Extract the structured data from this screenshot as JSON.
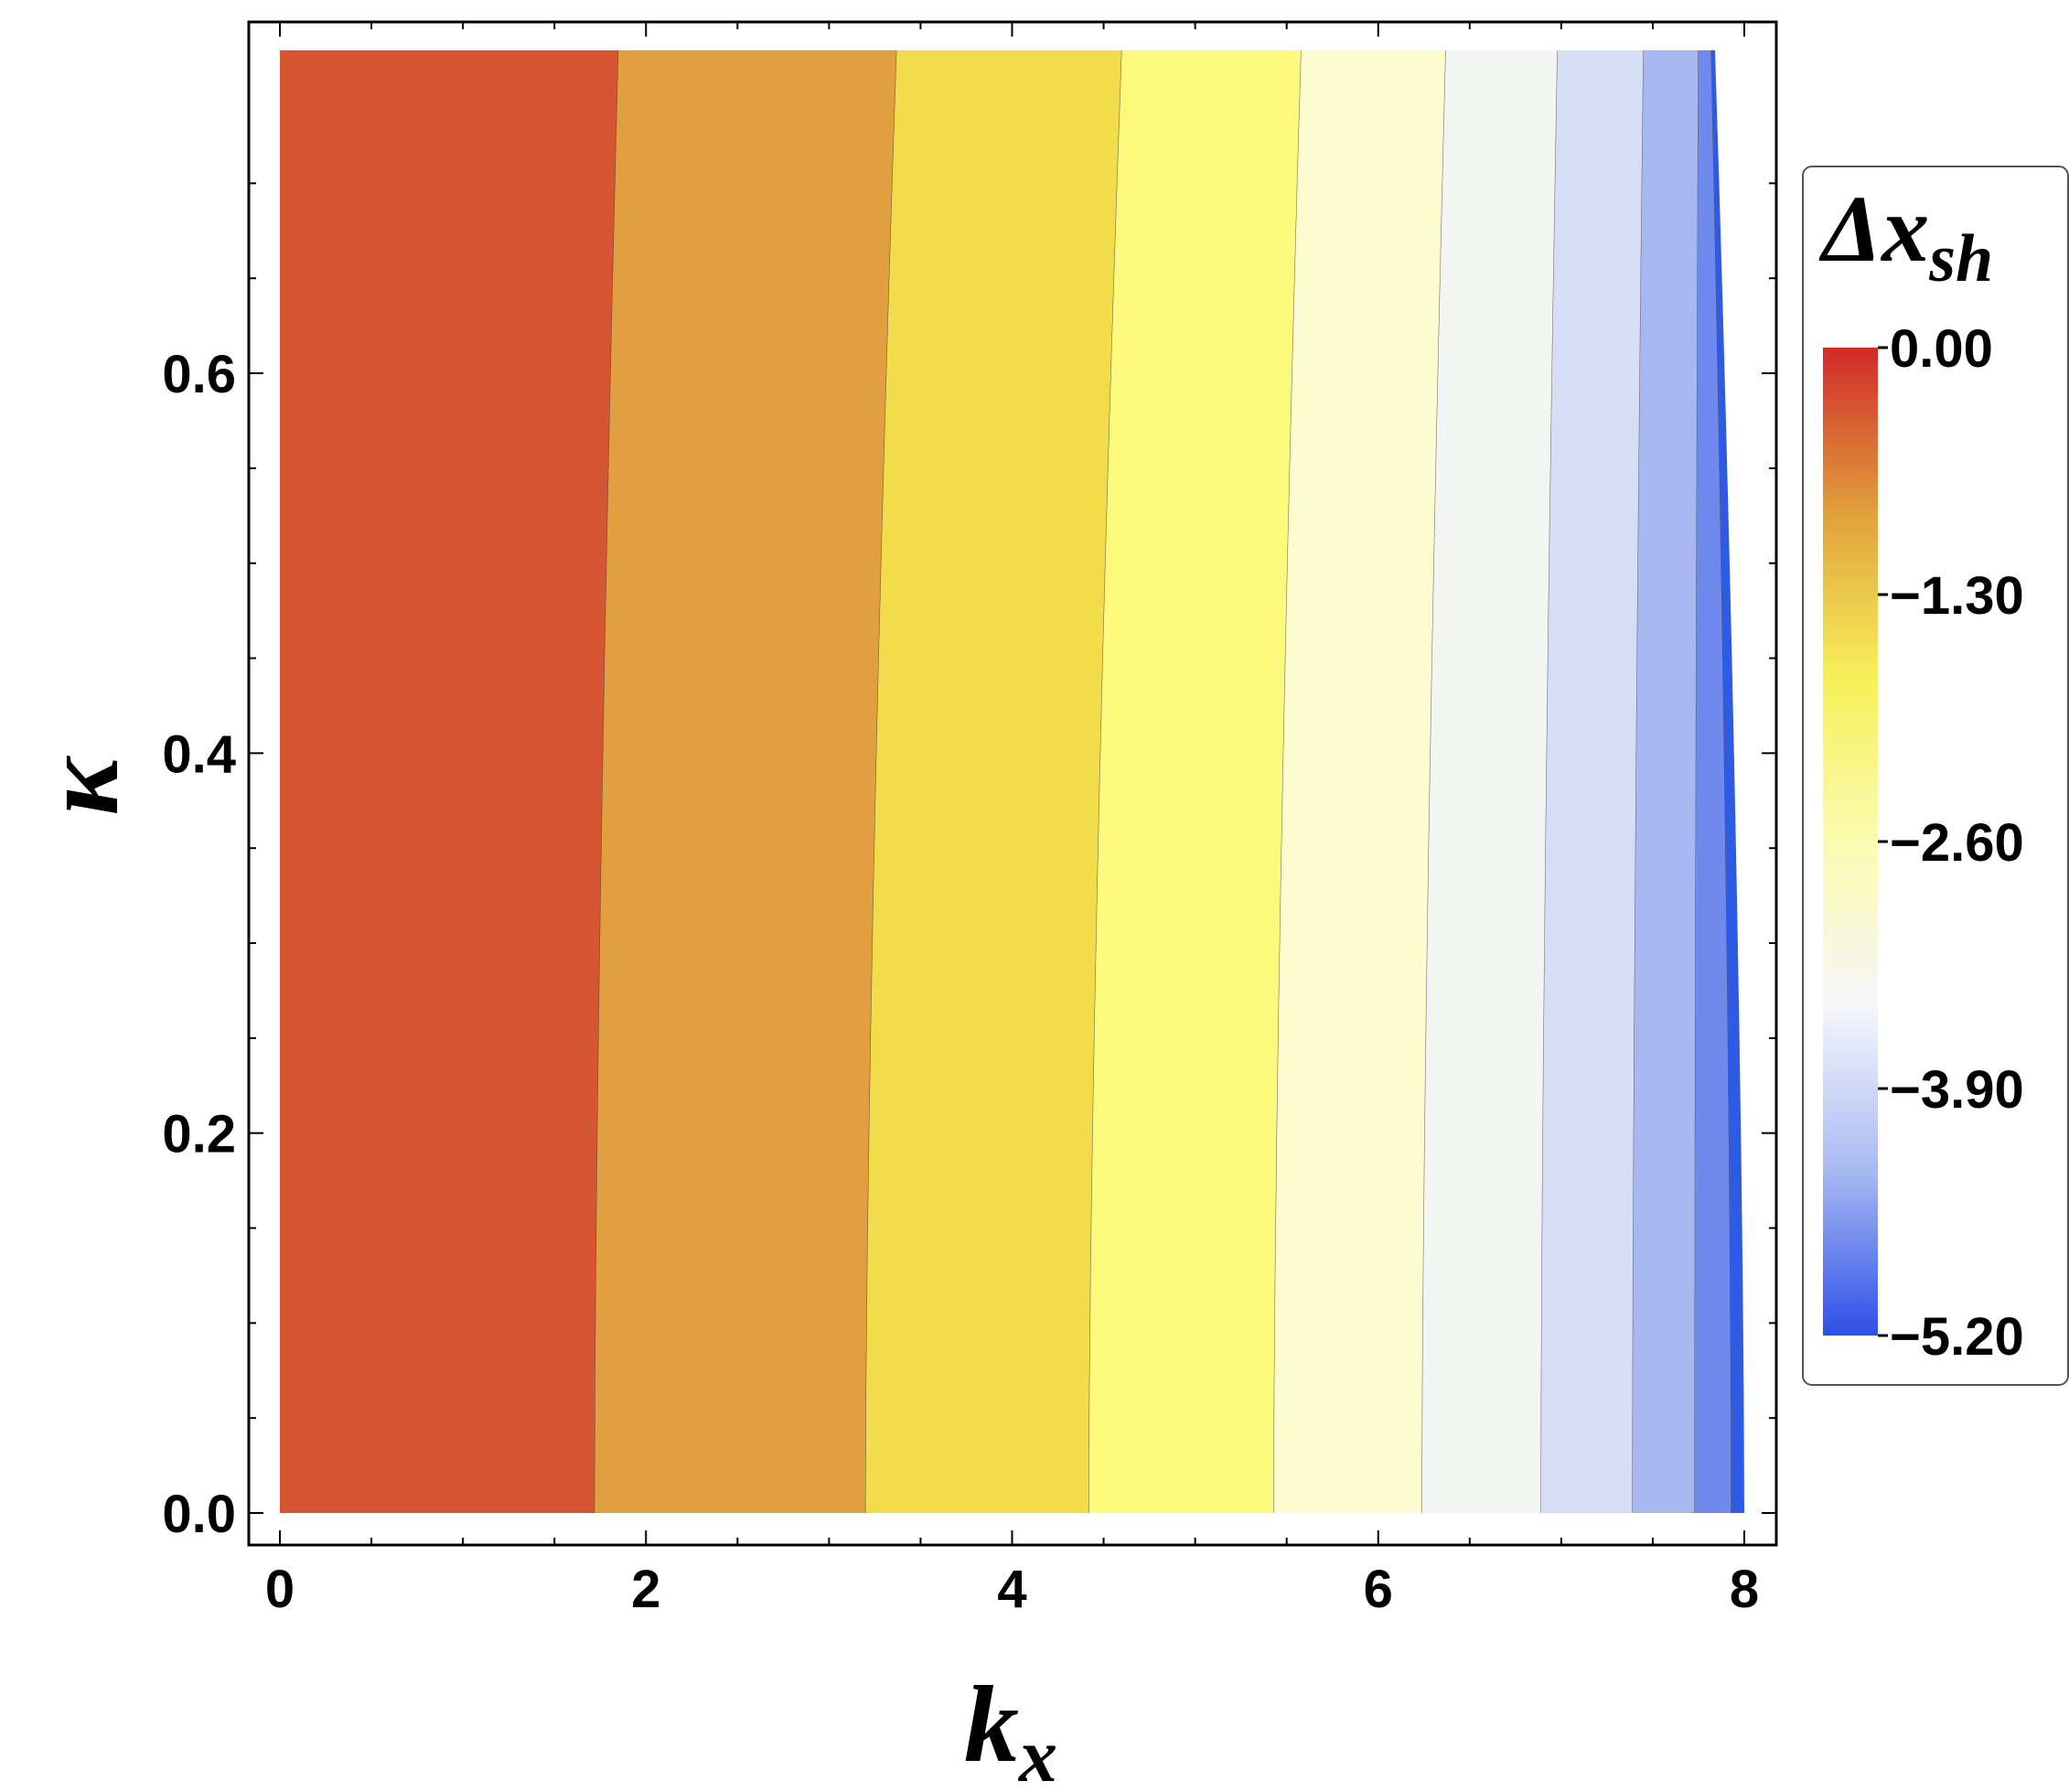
{
  "chart_data": {
    "type": "contour",
    "xlabel": "k",
    "xlabel_sub": "x",
    "ylabel": "κ",
    "xlim": [
      0,
      8
    ],
    "ylim": [
      0,
      0.77
    ],
    "x_ticks": [
      {
        "value": 0,
        "label": "0"
      },
      {
        "value": 2,
        "label": "2"
      },
      {
        "value": 4,
        "label": "4"
      },
      {
        "value": 6,
        "label": "6"
      },
      {
        "value": 8,
        "label": "8"
      }
    ],
    "y_ticks": [
      {
        "value": 0.0,
        "label": "0.0"
      },
      {
        "value": 0.2,
        "label": "0.2"
      },
      {
        "value": 0.4,
        "label": "0.4"
      },
      {
        "value": 0.6,
        "label": "0.6"
      }
    ],
    "contour_bands": [
      {
        "color": "#d65532",
        "x_at_bottom": 1.72,
        "x_at_top": 1.85
      },
      {
        "color": "#e19f3f",
        "x_at_bottom": 3.2,
        "x_at_top": 3.37
      },
      {
        "color": "#f2dc4b",
        "x_at_bottom": 4.42,
        "x_at_top": 4.6
      },
      {
        "color": "#fdf97c",
        "x_at_bottom": 5.43,
        "x_at_top": 5.58
      },
      {
        "color": "#fdfcd0",
        "x_at_bottom": 6.24,
        "x_at_top": 6.37
      },
      {
        "color": "#f3f5f2",
        "x_at_bottom": 6.89,
        "x_at_top": 6.98
      },
      {
        "color": "#d6def6",
        "x_at_bottom": 7.39,
        "x_at_top": 7.45
      },
      {
        "color": "#a7b8f1",
        "x_at_bottom": 7.73,
        "x_at_top": 7.75
      },
      {
        "color": "#6f89ee",
        "x_at_bottom": 7.93,
        "x_at_top": 7.82
      },
      {
        "color": "#2e5be6",
        "x_at_bottom": 8.0,
        "x_at_top": 7.84
      }
    ],
    "legend": {
      "title": "Δx",
      "title_sub": "sh",
      "min": -5.2,
      "max": 0.0,
      "gradient_colors": [
        "#2e4fe8",
        "#a8baf2",
        "#f6f6fa",
        "#fbfbb0",
        "#f7f05a",
        "#e0a03c",
        "#d12a2a"
      ],
      "ticks": [
        {
          "value": 0.0,
          "label": "0.00"
        },
        {
          "value": -1.3,
          "label": "−1.30"
        },
        {
          "value": -2.6,
          "label": "−2.60"
        },
        {
          "value": -3.9,
          "label": "−3.90"
        },
        {
          "value": -5.2,
          "label": "−5.20"
        }
      ]
    }
  }
}
